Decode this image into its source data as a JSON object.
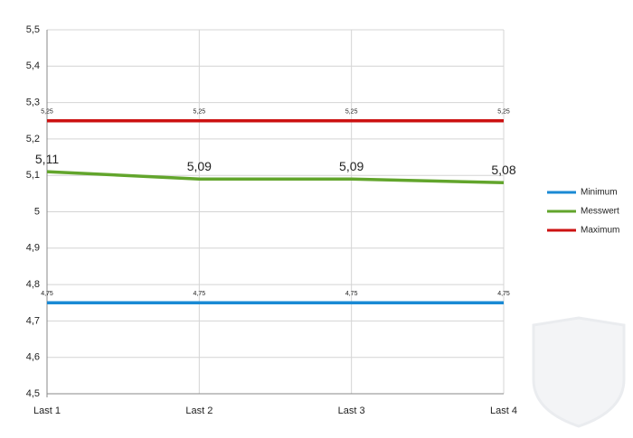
{
  "chart_data": {
    "type": "line",
    "categories": [
      "Last 1",
      "Last 2",
      "Last 3",
      "Last 4"
    ],
    "series": [
      {
        "name": "Minimum",
        "color": "#1a8ad4",
        "values": [
          4.75,
          4.75,
          4.75,
          4.75
        ],
        "value_labels": [
          "4,75",
          "4,75",
          "4,75",
          "4,75"
        ]
      },
      {
        "name": "Messwert",
        "color": "#62a52c",
        "values": [
          5.11,
          5.09,
          5.09,
          5.08
        ],
        "value_labels": [
          "5,11",
          "5,09",
          "5,09",
          "5,08"
        ]
      },
      {
        "name": "Maximum",
        "color": "#cc1111",
        "values": [
          5.25,
          5.25,
          5.25,
          5.25
        ],
        "value_labels": [
          "5,25",
          "5,25",
          "5,25",
          "5,25"
        ]
      }
    ],
    "ylim": [
      4.5,
      5.5
    ],
    "yticks": [
      {
        "value": 4.5,
        "label": "4,5"
      },
      {
        "value": 4.6,
        "label": "4,6"
      },
      {
        "value": 4.7,
        "label": "4,7"
      },
      {
        "value": 4.8,
        "label": "4,8"
      },
      {
        "value": 4.9,
        "label": "4,9"
      },
      5,
      {
        "value": 5.1,
        "label": "5,1"
      },
      {
        "value": 5.2,
        "label": "5,2"
      },
      {
        "value": 5.3,
        "label": "5,3"
      },
      {
        "value": 5.4,
        "label": "5,4"
      },
      {
        "value": 5.5,
        "label": "5,5"
      }
    ],
    "grid": true,
    "legend": "right"
  }
}
